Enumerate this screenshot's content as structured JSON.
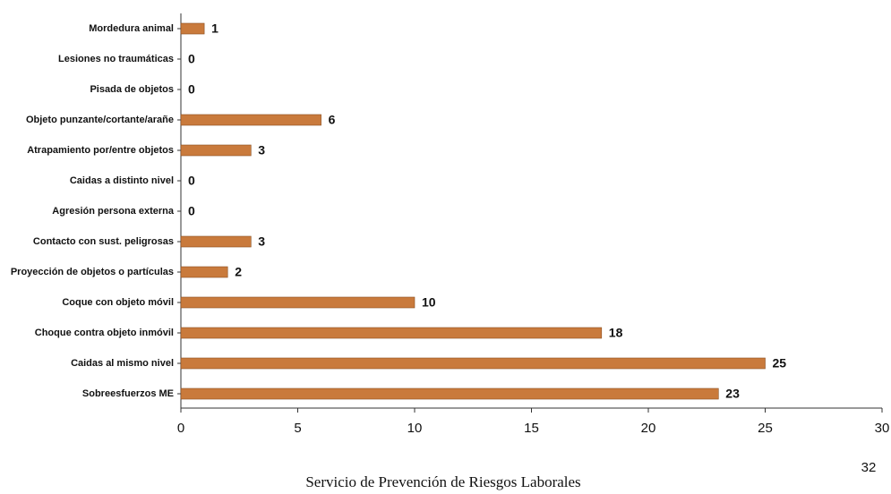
{
  "chart_data": {
    "type": "barh",
    "categories": [
      "Mordedura animal",
      "Lesiones no traumáticas",
      "Pisada de objetos",
      "Objeto punzante/cortante/arañe",
      "Atrapamiento por/entre objetos",
      "Caidas a distinto nivel",
      "Agresión persona externa",
      "Contacto con sust. peligrosas",
      "Proyección de objetos o partículas",
      "Coque con objeto móvil",
      "Choque contra objeto inmóvil",
      "Caidas al mismo nivel",
      "Sobreesfuerzos ME"
    ],
    "values": [
      1,
      0,
      0,
      6,
      3,
      0,
      0,
      3,
      2,
      10,
      18,
      25,
      23
    ],
    "color": "#c97a3c",
    "xlim": [
      0,
      30
    ],
    "xticks": [
      0,
      5,
      10,
      15,
      20,
      25,
      30
    ]
  },
  "footer": "Servicio de Prevención de Riesgos Laborales",
  "page_number": "32"
}
